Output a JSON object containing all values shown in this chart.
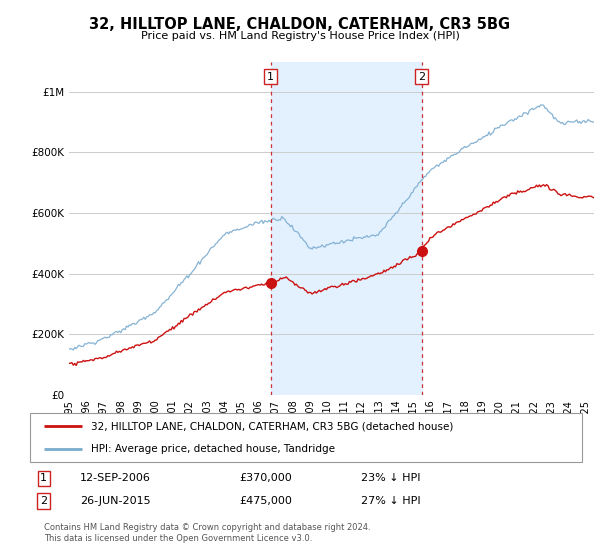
{
  "title": "32, HILLTOP LANE, CHALDON, CATERHAM, CR3 5BG",
  "subtitle": "Price paid vs. HM Land Registry's House Price Index (HPI)",
  "legend_line1": "32, HILLTOP LANE, CHALDON, CATERHAM, CR3 5BG (detached house)",
  "legend_line2": "HPI: Average price, detached house, Tandridge",
  "annotation1_date": "12-SEP-2006",
  "annotation1_price": "£370,000",
  "annotation1_pct": "23% ↓ HPI",
  "annotation2_date": "26-JUN-2015",
  "annotation2_price": "£475,000",
  "annotation2_pct": "27% ↓ HPI",
  "footer": "Contains HM Land Registry data © Crown copyright and database right 2024.\nThis data is licensed under the Open Government Licence v3.0.",
  "hpi_color": "#7aabcf",
  "price_color": "#cc1111",
  "vline_color": "#cc3333",
  "shading_color": "#ddeeff",
  "ylim": [
    0,
    1100000
  ],
  "yticks": [
    0,
    200000,
    400000,
    600000,
    800000,
    1000000
  ],
  "sale1_x": 2006.71,
  "sale1_y": 370000,
  "sale2_x": 2015.49,
  "sale2_y": 475000,
  "xmin": 1995.0,
  "xmax": 2025.5
}
